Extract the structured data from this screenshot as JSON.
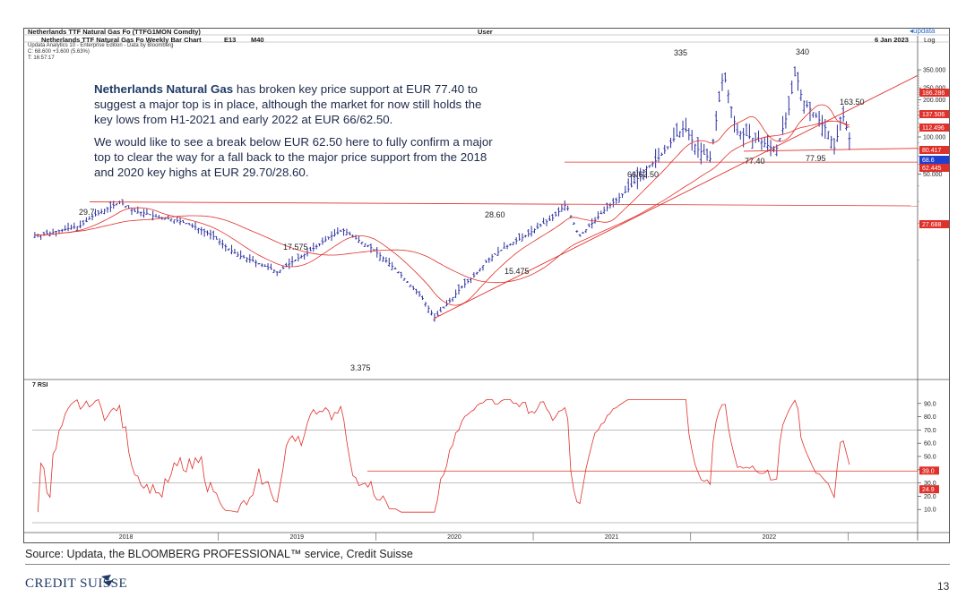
{
  "header": {
    "security": "Netherlands TTF Natural Gas Fo (TTFG1MON Comdty)",
    "user": "User",
    "brand": "updata",
    "chart_title": "Netherlands TTF Natural Gas Fo Weekly Bar Chart",
    "period": "E13",
    "ma": "M40",
    "date": "6 Jan 2023",
    "scale": "Log",
    "meta_lines": [
      "Updata Analytics 10 - Enterprise Edition - Data by Bloomberg",
      "C: 68.600 +3.600 (5.63%)",
      "T: 16:57:17"
    ]
  },
  "commentary": {
    "p1_lead": "Netherlands Natural Gas",
    "p1_rest": " has broken key price support at EUR 77.40 to suggest a major top is in place, although the market for now still holds the key lows from H1-2021 and early 2022 at EUR 66/62.50.",
    "p2": "We would like to see a break below EUR 62.50 here to fully confirm a major top to clear the way for a fall back to the major price support from the 2018 and 2020 key highs at EUR 29.70/28.60."
  },
  "footer": {
    "source": "Source: Updata, the BLOOMBERG PROFESSIONAL™ service, Credit Suisse",
    "logo": "CREDIT SUISSE",
    "page": "13"
  },
  "colors": {
    "bars": "#2b2f9e",
    "ma": "#e0302a",
    "trend": "#e0302a",
    "grid": "#a9a9a9",
    "tag_red": "#e0302a",
    "tag_blue": "#1e3fd0"
  },
  "chart_data": [
    {
      "type": "bar",
      "subtype": "ohlc-weekly",
      "scale": "log",
      "ylim": [
        0.9,
        360
      ],
      "y_ticks": [
        "350.000",
        "250.000",
        "200.000",
        "150.000",
        "100.000",
        "50.000"
      ],
      "x_labels": [
        "2018",
        "2019",
        "2020",
        "2021",
        "2022"
      ],
      "price_path": [
        [
          "2017-11",
          16.0
        ],
        [
          "2017-12",
          17.0
        ],
        [
          "2018-02",
          19.0
        ],
        [
          "2018-03",
          23.0
        ],
        [
          "2018-04",
          26.0
        ],
        [
          "2018-05",
          29.7
        ],
        [
          "2018-06",
          25.0
        ],
        [
          "2018-07",
          24.0
        ],
        [
          "2018-08",
          22.0
        ],
        [
          "2018-09",
          21.5
        ],
        [
          "2018-10",
          20.0
        ],
        [
          "2018-11",
          18.0
        ],
        [
          "2018-12",
          16.0
        ],
        [
          "2019-01",
          13.0
        ],
        [
          "2019-02",
          11.0
        ],
        [
          "2019-03",
          10.0
        ],
        [
          "2019-04",
          9.0
        ],
        [
          "2019-05",
          8.0
        ],
        [
          "2019-06",
          9.5
        ],
        [
          "2019-07",
          11.0
        ],
        [
          "2019-08",
          13.0
        ],
        [
          "2019-09",
          15.5
        ],
        [
          "2019-10",
          17.575
        ],
        [
          "2019-11",
          15.0
        ],
        [
          "2019-12",
          13.0
        ],
        [
          "2020-01",
          10.5
        ],
        [
          "2020-02",
          8.5
        ],
        [
          "2020-03",
          6.5
        ],
        [
          "2020-04",
          5.0
        ],
        [
          "2020-05",
          3.375
        ],
        [
          "2020-06",
          4.5
        ],
        [
          "2020-07",
          6.0
        ],
        [
          "2020-08",
          7.5
        ],
        [
          "2020-09",
          10.0
        ],
        [
          "2020-10",
          12.0
        ],
        [
          "2020-11",
          14.0
        ],
        [
          "2020-12",
          16.0
        ],
        [
          "2021-01",
          19.0
        ],
        [
          "2021-02",
          22.0
        ],
        [
          "2021-03",
          28.6
        ],
        [
          "2021-04",
          15.475
        ],
        [
          "2021-05",
          20.0
        ],
        [
          "2021-06",
          26.0
        ],
        [
          "2021-07",
          32.0
        ],
        [
          "2021-08",
          40.0
        ],
        [
          "2021-09",
          55.0
        ],
        [
          "2021-10",
          66.0
        ],
        [
          "2021-11",
          90.0
        ],
        [
          "2021-12",
          120.0
        ],
        [
          "2022-01",
          80.0
        ],
        [
          "2022-02",
          66.0
        ],
        [
          "2022-03",
          335.0
        ],
        [
          "2022-04",
          110.0
        ],
        [
          "2022-05",
          100.0
        ],
        [
          "2022-06",
          90.0
        ],
        [
          "2022-07",
          77.4
        ],
        [
          "2022-08",
          170.0
        ],
        [
          "2022-08b",
          340.0
        ],
        [
          "2022-09",
          200.0
        ],
        [
          "2022-10",
          150.0
        ],
        [
          "2022-11",
          110.0
        ],
        [
          "2022-11b",
          77.95
        ],
        [
          "2022-12",
          163.5
        ],
        [
          "2023-01",
          68.6
        ]
      ],
      "annotations": [
        "29.7",
        "17.575",
        "3.375",
        "28.60",
        "15.475",
        "66/62.50",
        "335",
        "340",
        "77.40",
        "77.95",
        "163.50"
      ],
      "right_tags": [
        {
          "label": "186.286",
          "color": "red"
        },
        {
          "label": "137.506",
          "color": "red"
        },
        {
          "label": "112.496",
          "color": "red"
        },
        {
          "label": "80.417",
          "color": "red"
        },
        {
          "label": "68.6",
          "color": "blue"
        },
        {
          "label": "62.445",
          "color": "red"
        },
        {
          "label": "27.688",
          "color": "red"
        }
      ],
      "horizontal_levels": [
        62.5,
        28.6,
        77.4
      ]
    },
    {
      "type": "line",
      "title": "7 RSI",
      "ylim": [
        0,
        100
      ],
      "y_ticks": [
        "90.0",
        "80.0",
        "70.0",
        "60.0",
        "50.0",
        "40.0",
        "30.0",
        "20.0",
        "10.0"
      ],
      "right_tags": [
        {
          "label": "39.0",
          "color": "red"
        },
        {
          "label": "24.9",
          "color": "red"
        }
      ],
      "reference_lines": [
        70,
        30,
        39
      ]
    }
  ]
}
